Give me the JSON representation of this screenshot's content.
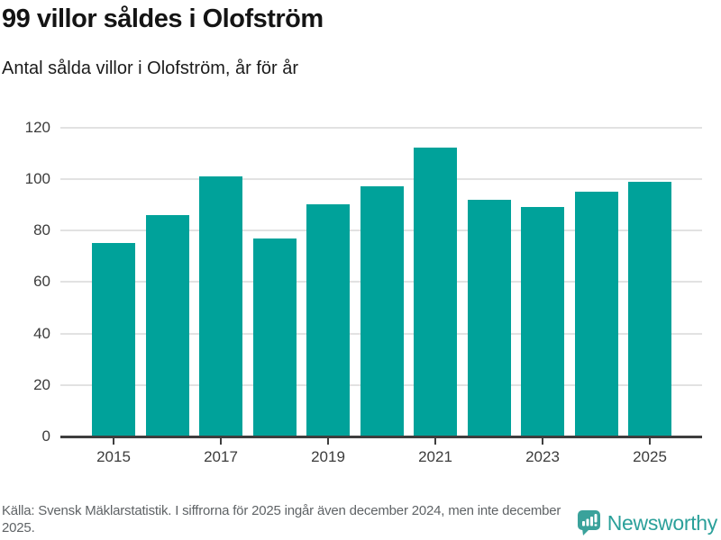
{
  "header": {
    "title": "99 villor såldes i Olofström",
    "subtitle": "Antal sålda villor i Olofström, år för år"
  },
  "chart_data": {
    "type": "bar",
    "categories": [
      "2015",
      "2016",
      "2017",
      "2018",
      "2019",
      "2020",
      "2021",
      "2022",
      "2023",
      "2024",
      "2025"
    ],
    "values": [
      75,
      86,
      101,
      77,
      90,
      97,
      112,
      92,
      89,
      95,
      99
    ],
    "title": "99 villor såldes i Olofström",
    "subtitle": "Antal sålda villor i Olofström, år för år",
    "xlabel": "",
    "ylabel": "",
    "ylim": [
      0,
      120
    ],
    "yticks": [
      0,
      20,
      40,
      60,
      80,
      100,
      120
    ],
    "xtick_labels": [
      "2015",
      "2017",
      "2019",
      "2021",
      "2023",
      "2025"
    ],
    "grid": true,
    "legend": false,
    "bar_color": "#00a29a"
  },
  "footer": {
    "source": "Källa: Svensk Mäklarstatistik. I siffrorna för 2025 ingår även december 2024, men inte december 2025.",
    "brand": "Newsworthy"
  },
  "colors": {
    "bar": "#00a29a",
    "logo": "#3aa29b",
    "gridline": "#e2e2e2",
    "axis": "#3e3e3e",
    "title_text": "#141414",
    "muted_text": "#5f6366"
  }
}
